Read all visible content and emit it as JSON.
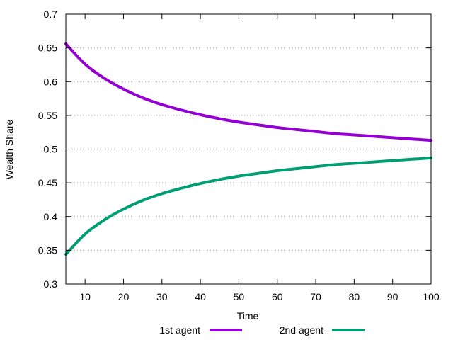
{
  "chart_data": {
    "type": "line",
    "title": "",
    "xlabel": "Time",
    "ylabel": "Wealth Share",
    "xlim": [
      5,
      100
    ],
    "ylim": [
      0.3,
      0.7
    ],
    "x_ticks": [
      10,
      20,
      30,
      40,
      50,
      60,
      70,
      80,
      90,
      100
    ],
    "y_ticks": [
      0.3,
      0.35,
      0.4,
      0.45,
      0.5,
      0.55,
      0.6,
      0.65,
      0.7
    ],
    "x_tick_labels": [
      "10",
      "20",
      "30",
      "40",
      "50",
      "60",
      "70",
      "80",
      "90",
      "100"
    ],
    "y_tick_labels": [
      "0.3",
      "0.35",
      "0.4",
      "0.45",
      "0.5",
      "0.55",
      "0.6",
      "0.65",
      "0.7"
    ],
    "grid": "horizontal",
    "legend_position": "bottom",
    "x": [
      5,
      10,
      15,
      20,
      25,
      30,
      35,
      40,
      45,
      50,
      55,
      60,
      65,
      70,
      75,
      80,
      85,
      90,
      95,
      100
    ],
    "series": [
      {
        "name": "1st agent",
        "color": "#9400d3",
        "values": [
          0.656,
          0.626,
          0.605,
          0.589,
          0.576,
          0.566,
          0.558,
          0.551,
          0.545,
          0.54,
          0.536,
          0.532,
          0.529,
          0.526,
          0.523,
          0.521,
          0.519,
          0.517,
          0.515,
          0.513
        ]
      },
      {
        "name": "2nd agent",
        "color": "#009e73",
        "values": [
          0.344,
          0.374,
          0.395,
          0.411,
          0.424,
          0.434,
          0.442,
          0.449,
          0.455,
          0.46,
          0.464,
          0.468,
          0.471,
          0.474,
          0.477,
          0.479,
          0.481,
          0.483,
          0.485,
          0.487
        ]
      }
    ]
  }
}
